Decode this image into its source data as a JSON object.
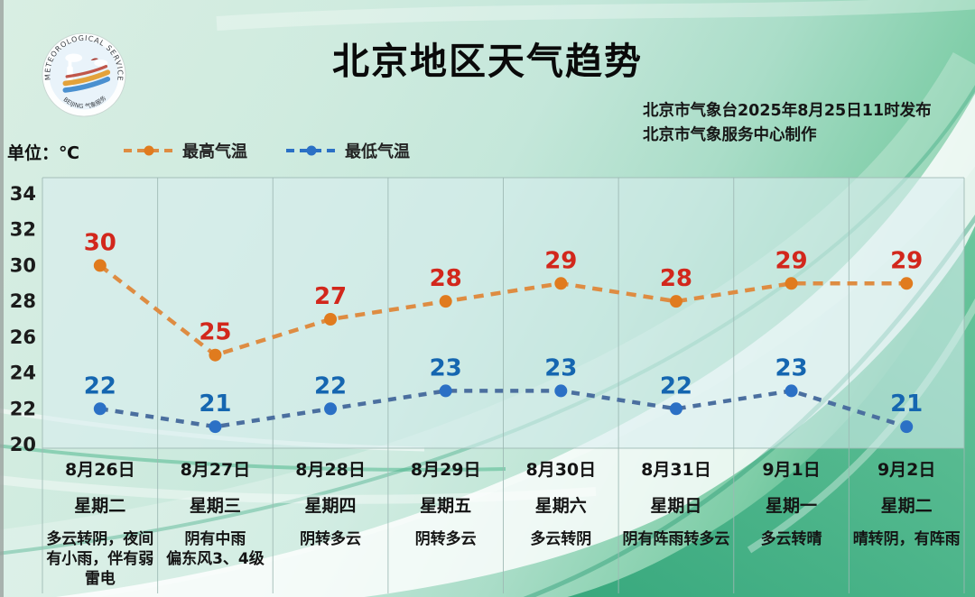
{
  "header": {
    "title": "北京地区天气趋势",
    "issued_line1": "北京市气象台2025年8月25日11时发布",
    "issued_line2": "北京市气象服务中心制作",
    "logo_text_top": "METEOROLOGICAL SERVICE",
    "logo_text_bottom": "BEIJING 气象服务"
  },
  "unit_label": "单位：℃",
  "legend": {
    "high_label": "最高气温",
    "low_label": "最低气温"
  },
  "colors": {
    "high_line": "#DE8C42",
    "high_marker": "#E07B1E",
    "high_label": "#D2271C",
    "low_line": "#4B6F9F",
    "low_marker": "#2B70C5",
    "low_label": "#1566B0",
    "plot_fill": "rgba(217,238,240,0.58)",
    "grid_line": "#9db8b3"
  },
  "chart_data": {
    "type": "line",
    "title": "北京地区天气趋势",
    "unit": "℃",
    "yticks": [
      34,
      32,
      30,
      28,
      26,
      24,
      22,
      20
    ],
    "ylim": [
      20,
      34
    ],
    "grid": "vertical",
    "legend_position": "top-left",
    "categories": [
      {
        "date": "8月26日",
        "weekday": "星期二",
        "weather": "多云转阴，夜间有小雨，伴有弱雷电"
      },
      {
        "date": "8月27日",
        "weekday": "星期三",
        "weather": "阴有中雨\n偏东风3、4级"
      },
      {
        "date": "8月28日",
        "weekday": "星期四",
        "weather": "阴转多云"
      },
      {
        "date": "8月29日",
        "weekday": "星期五",
        "weather": "阴转多云"
      },
      {
        "date": "8月30日",
        "weekday": "星期六",
        "weather": "多云转阴"
      },
      {
        "date": "8月31日",
        "weekday": "星期日",
        "weather": "阴有阵雨转多云"
      },
      {
        "date": "9月1日",
        "weekday": "星期一",
        "weather": "多云转晴"
      },
      {
        "date": "9月2日",
        "weekday": "星期二",
        "weather": "晴转阴，有阵雨"
      }
    ],
    "series": [
      {
        "name": "最高气温",
        "values": [
          30,
          25,
          27,
          28,
          29,
          28,
          29,
          29
        ],
        "line_color": "#DE8C42",
        "marker_color": "#E07B1E",
        "label_color": "#D2271C"
      },
      {
        "name": "最低气温",
        "values": [
          22,
          21,
          22,
          23,
          23,
          22,
          23,
          21
        ],
        "line_color": "#4B6F9F",
        "marker_color": "#2B70C5",
        "label_color": "#1566B0"
      }
    ]
  }
}
